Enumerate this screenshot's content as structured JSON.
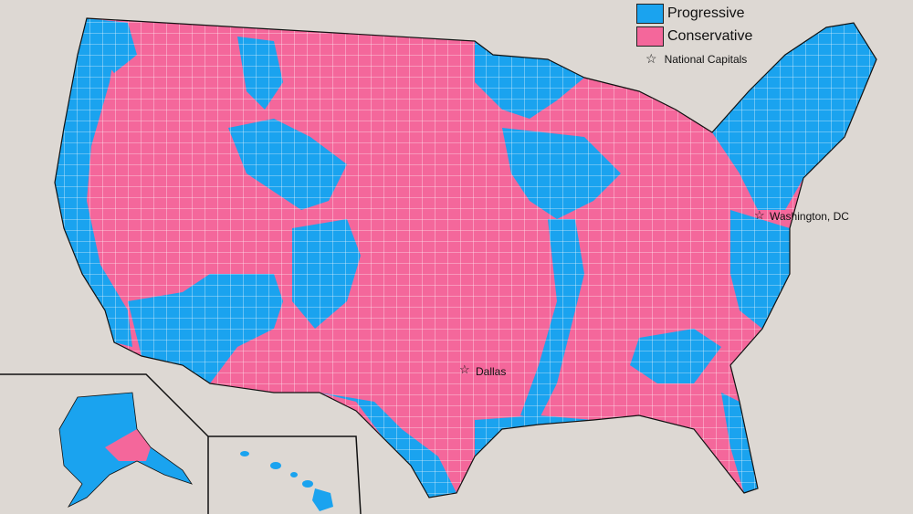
{
  "legend": {
    "progressive": {
      "label": "Progressive",
      "color": "#1aa3ef"
    },
    "conservative": {
      "label": "Conservative",
      "color": "#f4679b"
    },
    "capitals_label": "National Capitals",
    "star_glyph": "☆"
  },
  "capitals": {
    "washington": "Washington, DC",
    "dallas": "Dallas"
  },
  "colors": {
    "background": "#ddd8d3",
    "border": "#ffffff",
    "outline": "#111111"
  }
}
